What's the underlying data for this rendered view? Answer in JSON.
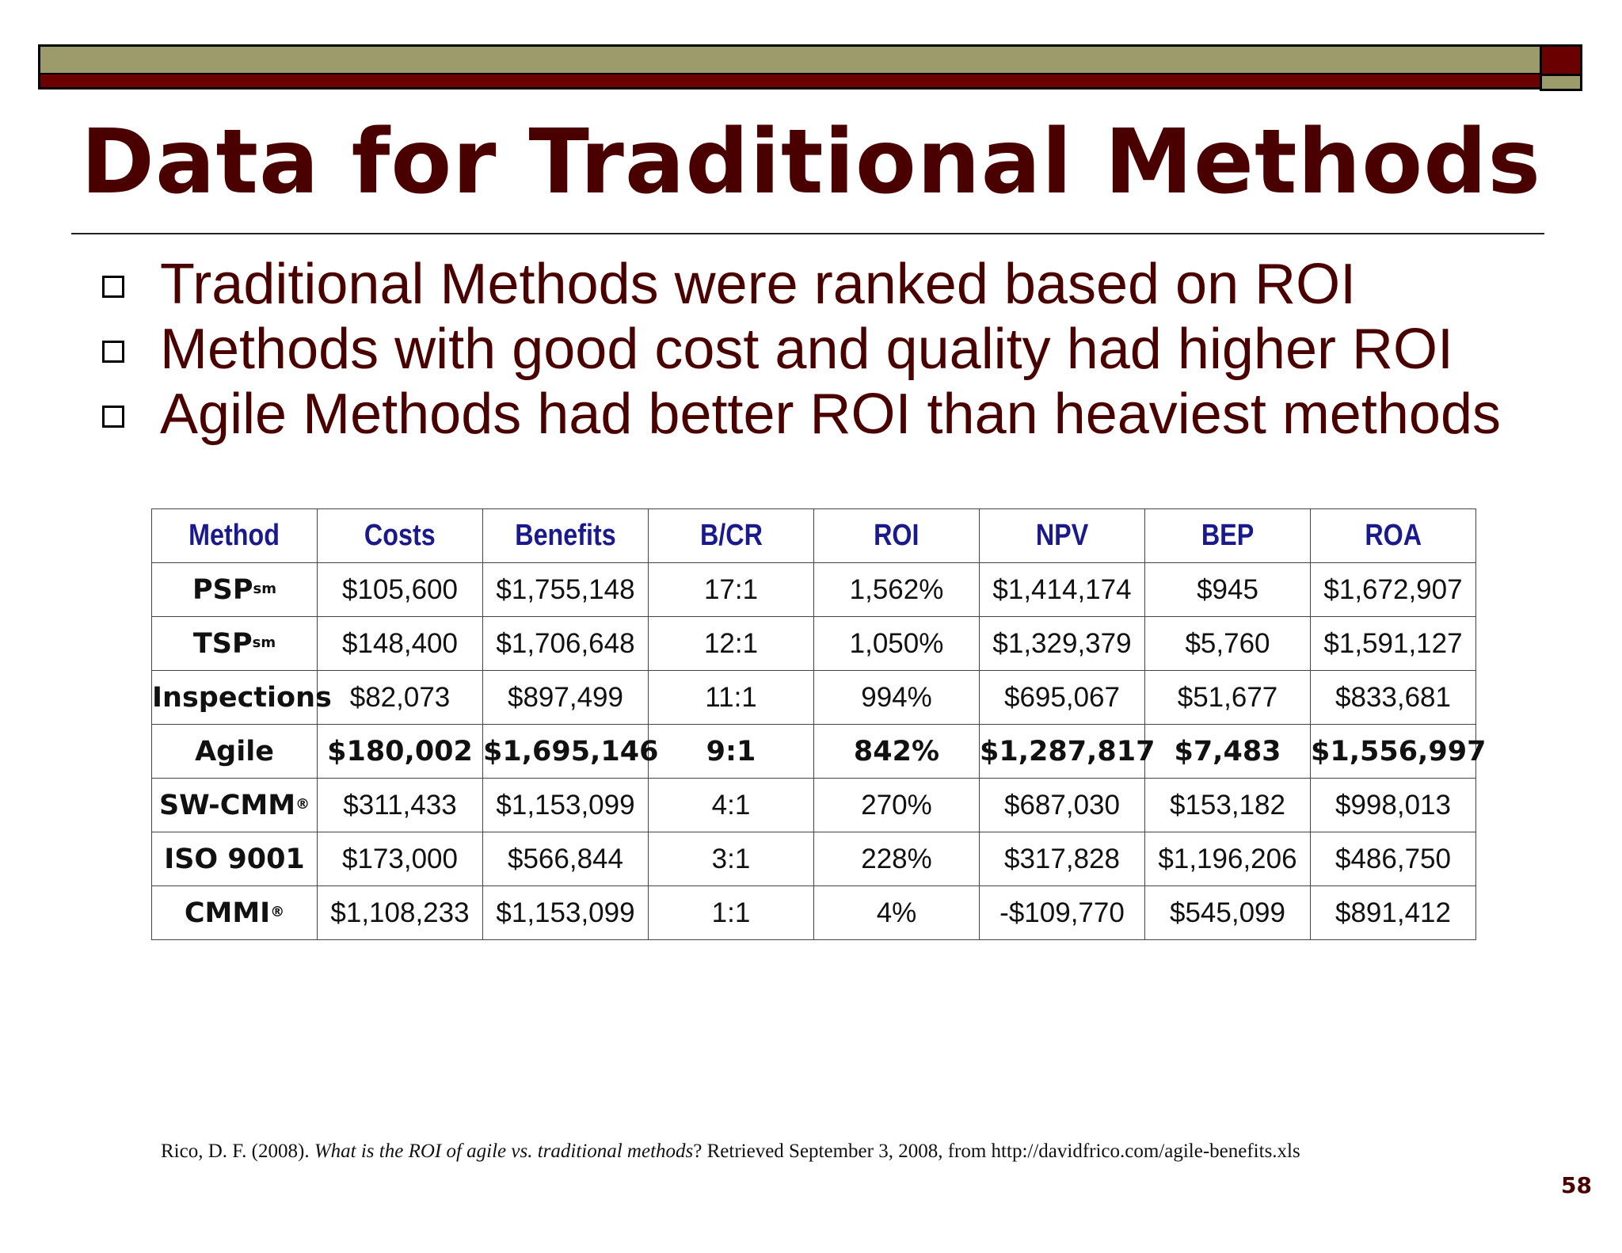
{
  "title": "Data for Traditional Methods",
  "bullets": [
    "Traditional Methods were ranked based on ROI",
    "Methods with good cost and quality had higher ROI",
    "Agile Methods had better ROI than heaviest methods"
  ],
  "table": {
    "headers": [
      "Method",
      "Costs",
      "Benefits",
      "B/CR",
      "ROI",
      "NPV",
      "BEP",
      "ROA"
    ],
    "rows": [
      {
        "method": "PSP",
        "mark": "sm",
        "cells": [
          "$105,600",
          "$1,755,148",
          "17:1",
          "1,562%",
          "$1,414,174",
          "$945",
          "$1,672,907"
        ]
      },
      {
        "method": "TSP",
        "mark": "sm",
        "cells": [
          "$148,400",
          "$1,706,648",
          "12:1",
          "1,050%",
          "$1,329,379",
          "$5,760",
          "$1,591,127"
        ]
      },
      {
        "method": "Inspections",
        "mark": "",
        "cells": [
          "$82,073",
          "$897,499",
          "11:1",
          "994%",
          "$695,067",
          "$51,677",
          "$833,681"
        ]
      },
      {
        "method": "Agile",
        "mark": "",
        "cells": [
          "$180,002",
          "$1,695,146",
          "9:1",
          "842%",
          "$1,287,817",
          "$7,483",
          "$1,556,997"
        ]
      },
      {
        "method": "SW-CMM",
        "mark": "®",
        "cells": [
          "$311,433",
          "$1,153,099",
          "4:1",
          "270%",
          "$687,030",
          "$153,182",
          "$998,013"
        ]
      },
      {
        "method": "ISO 9001",
        "mark": "",
        "cells": [
          "$173,000",
          "$566,844",
          "3:1",
          "228%",
          "$317,828",
          "$1,196,206",
          "$486,750"
        ]
      },
      {
        "method": "CMMI",
        "mark": "®",
        "cells": [
          "$1,108,233",
          "$1,153,099",
          "1:1",
          "4%",
          "-$109,770",
          "$545,099",
          "$891,412"
        ]
      }
    ]
  },
  "citation": {
    "prefix": "Rico, D. F. (2008). ",
    "italic": "What is the ROI of agile vs. traditional methods",
    "suffix": "? Retrieved September 3, 2008, from http://davidfrico.com/agile-benefits.xls"
  },
  "page_number": "58",
  "colors": {
    "title": "#4b0000",
    "header_text": "#1a1a8c",
    "highlight_row": "#e00000",
    "bar_olive": "#9b9b6b",
    "bar_red": "#6a0000"
  }
}
